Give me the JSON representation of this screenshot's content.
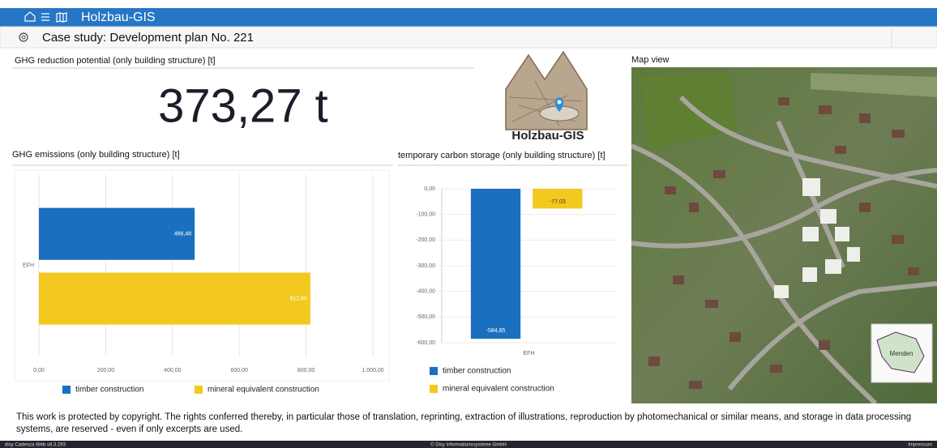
{
  "header": {
    "app_title": "Holzbau-GIS"
  },
  "subheader": {
    "title": "Case study: Development plan No. 221"
  },
  "kpi": {
    "title": "GHG reduction potential (only building structure) [t]",
    "value": "373,27 t"
  },
  "logo": {
    "label": "Holzbau-GIS"
  },
  "emissions_chart": {
    "type": "bar",
    "orientation": "horizontal",
    "title": "GHG emissions (only building structure) [t]",
    "categories": [
      "EFH"
    ],
    "series": [
      {
        "name": "timber construction",
        "color": "#1a6fc1",
        "values": [
          466.48
        ],
        "value_labels": [
          "466,48"
        ]
      },
      {
        "name": "mineral equivalent construction",
        "color": "#f3c81f",
        "values": [
          812.8
        ],
        "value_labels": [
          "812,80"
        ]
      }
    ],
    "xlim": [
      0,
      1000
    ],
    "xticks": [
      {
        "value": 0,
        "label": "0,00"
      },
      {
        "value": 200,
        "label": "200,00"
      },
      {
        "value": 400,
        "label": "400,00"
      },
      {
        "value": 600,
        "label": "600,00"
      },
      {
        "value": 800,
        "label": "800,00"
      },
      {
        "value": 1000,
        "label": "1.000,00"
      }
    ],
    "grid": true
  },
  "storage_chart": {
    "type": "bar",
    "orientation": "vertical",
    "title": "temporary carbon storage (only building structure) [t]",
    "categories": [
      "EFH"
    ],
    "series": [
      {
        "name": "timber construction",
        "color": "#1a6fc1",
        "values": [
          -584.85
        ],
        "value_labels": [
          "-584,85"
        ]
      },
      {
        "name": "mineral equivalent construction",
        "color": "#f3c81f",
        "values": [
          -77.03
        ],
        "value_labels": [
          "-77,03"
        ]
      }
    ],
    "ylim": [
      -600,
      0
    ],
    "yticks": [
      {
        "value": 0,
        "label": "0,00"
      },
      {
        "value": -100,
        "label": "-100,00"
      },
      {
        "value": -200,
        "label": "-200,00"
      },
      {
        "value": -300,
        "label": "-300,00"
      },
      {
        "value": -400,
        "label": "-400,00"
      },
      {
        "value": -500,
        "label": "-500,00"
      },
      {
        "value": -600,
        "label": "-600,00"
      }
    ],
    "grid": true
  },
  "map": {
    "title": "Map view",
    "inset_label": "Menden"
  },
  "footer": {
    "copyright_lines": [
      "This work is protected by copyright. The rights conferred thereby, in particular those of translation, reprinting, extraction of illustrations, reproduction by photomechanical or similar means, and storage in data processing",
      "systems, are reserved - even if only excerpts are used."
    ],
    "version": "disy Cadenza Web v8.3.293",
    "company": "© Disy Informationssysteme GmbH",
    "link": "Impressum"
  }
}
